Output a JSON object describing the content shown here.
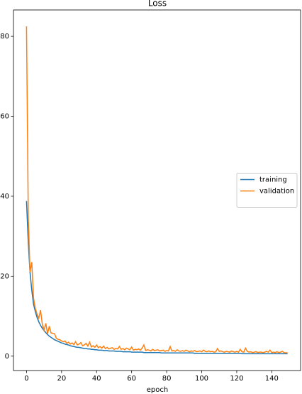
{
  "chart_data": {
    "type": "line",
    "title": "Loss",
    "x_label": "epoch",
    "x": [
      0,
      1,
      2,
      3,
      4,
      5,
      6,
      7,
      8,
      9,
      10,
      11,
      12,
      13,
      14,
      15,
      16,
      17,
      18,
      19,
      20,
      21,
      22,
      23,
      24,
      25,
      26,
      27,
      28,
      29,
      30,
      31,
      32,
      33,
      34,
      35,
      36,
      37,
      38,
      39,
      40,
      41,
      42,
      43,
      44,
      45,
      46,
      47,
      48,
      49,
      50,
      51,
      52,
      53,
      54,
      55,
      56,
      57,
      58,
      59,
      60,
      61,
      62,
      63,
      64,
      65,
      66,
      67,
      68,
      69,
      70,
      71,
      72,
      73,
      74,
      75,
      76,
      77,
      78,
      79,
      80,
      81,
      82,
      83,
      84,
      85,
      86,
      87,
      88,
      89,
      90,
      91,
      92,
      93,
      94,
      95,
      96,
      97,
      98,
      99,
      100,
      101,
      102,
      103,
      104,
      105,
      106,
      107,
      108,
      109,
      110,
      111,
      112,
      113,
      114,
      115,
      116,
      117,
      118,
      119,
      120,
      121,
      122,
      123,
      124,
      125,
      126,
      127,
      128,
      129,
      130,
      131,
      132,
      133,
      134,
      135,
      136,
      137,
      138,
      139,
      140,
      141,
      142,
      143,
      144,
      145,
      146,
      147,
      148,
      149
    ],
    "series": [
      {
        "name": "training",
        "color": "#1f77b4",
        "values": [
          38.8,
          28.5,
          21.0,
          16.5,
          13.0,
          11.2,
          9.7,
          8.6,
          7.7,
          7.0,
          6.4,
          5.9,
          5.4,
          5.0,
          4.7,
          4.4,
          4.1,
          3.9,
          3.7,
          3.5,
          3.3,
          3.2,
          3.0,
          2.9,
          2.8,
          2.6,
          2.5,
          2.4,
          2.3,
          2.2,
          2.2,
          2.1,
          2.0,
          1.9,
          1.9,
          1.8,
          1.8,
          1.7,
          1.7,
          1.6,
          1.6,
          1.5,
          1.5,
          1.5,
          1.4,
          1.4,
          1.4,
          1.3,
          1.3,
          1.3,
          1.3,
          1.2,
          1.2,
          1.2,
          1.2,
          1.1,
          1.1,
          1.1,
          1.1,
          1.1,
          1.0,
          1.0,
          1.0,
          1.0,
          1.0,
          1.0,
          1.0,
          0.9,
          0.9,
          0.9,
          0.9,
          0.9,
          0.9,
          0.9,
          0.9,
          0.9,
          0.9,
          0.8,
          0.8,
          0.8,
          0.8,
          0.8,
          0.8,
          0.8,
          0.8,
          0.8,
          0.8,
          0.8,
          0.8,
          0.8,
          0.8,
          0.8,
          0.8,
          0.8,
          0.8,
          0.8,
          0.7,
          0.7,
          0.7,
          0.7,
          0.7,
          0.7,
          0.7,
          0.7,
          0.7,
          0.7,
          0.7,
          0.7,
          0.7,
          0.7,
          0.7,
          0.7,
          0.7,
          0.7,
          0.7,
          0.7,
          0.7,
          0.7,
          0.7,
          0.7,
          0.7,
          0.7,
          0.7,
          0.6,
          0.6,
          0.6,
          0.6,
          0.6,
          0.6,
          0.6,
          0.6,
          0.6,
          0.6,
          0.6,
          0.6,
          0.6,
          0.6,
          0.6,
          0.6,
          0.6,
          0.6,
          0.6,
          0.6,
          0.6,
          0.6,
          0.6,
          0.6,
          0.6,
          0.6,
          0.6
        ]
      },
      {
        "name": "validation",
        "color": "#ff7f0e",
        "values": [
          82.5,
          35.0,
          21.0,
          23.5,
          14.5,
          12.0,
          10.5,
          9.5,
          11.5,
          8.0,
          6.5,
          8.2,
          5.6,
          7.5,
          5.8,
          5.7,
          5.6,
          4.5,
          4.2,
          4.1,
          3.8,
          3.6,
          3.8,
          3.2,
          3.5,
          3.0,
          3.3,
          2.9,
          3.6,
          2.8,
          3.0,
          3.4,
          2.6,
          2.8,
          3.2,
          2.5,
          3.5,
          2.3,
          2.6,
          2.2,
          2.8,
          2.1,
          2.4,
          2.0,
          2.5,
          1.9,
          2.2,
          1.8,
          2.0,
          2.1,
          1.7,
          1.9,
          1.8,
          2.4,
          1.7,
          1.9,
          1.6,
          2.0,
          1.8,
          1.6,
          2.3,
          1.5,
          1.7,
          1.6,
          1.8,
          1.5,
          2.0,
          2.8,
          1.4,
          1.6,
          1.5,
          1.3,
          1.7,
          1.4,
          1.5,
          1.6,
          1.3,
          1.4,
          1.5,
          1.2,
          1.4,
          1.3,
          2.4,
          1.3,
          1.4,
          1.2,
          1.6,
          1.3,
          1.2,
          1.4,
          1.2,
          1.5,
          1.3,
          1.1,
          1.3,
          1.2,
          1.4,
          1.1,
          1.2,
          1.3,
          1.1,
          1.5,
          1.2,
          1.1,
          1.3,
          1.1,
          1.2,
          1.0,
          1.1,
          1.9,
          1.2,
          1.3,
          1.1,
          1.0,
          1.2,
          1.1,
          1.0,
          1.3,
          1.1,
          1.0,
          1.2,
          1.0,
          1.7,
          1.1,
          1.0,
          2.0,
          1.2,
          1.0,
          1.1,
          0.9,
          1.0,
          1.1,
          0.9,
          1.0,
          1.0,
          0.9,
          1.0,
          1.2,
          1.0,
          1.5,
          0.9,
          1.0,
          0.9,
          1.1,
          0.9,
          1.0,
          1.2,
          0.9,
          0.8,
          0.9
        ]
      }
    ],
    "xlim": [
      -7.45,
      156.45
    ],
    "ylim": [
      -3.6,
      86.6
    ],
    "xticks": [
      0,
      20,
      40,
      60,
      80,
      100,
      120,
      140
    ],
    "yticks": [
      0,
      20,
      40,
      60,
      80
    ],
    "grid": false,
    "legend": "center right"
  }
}
